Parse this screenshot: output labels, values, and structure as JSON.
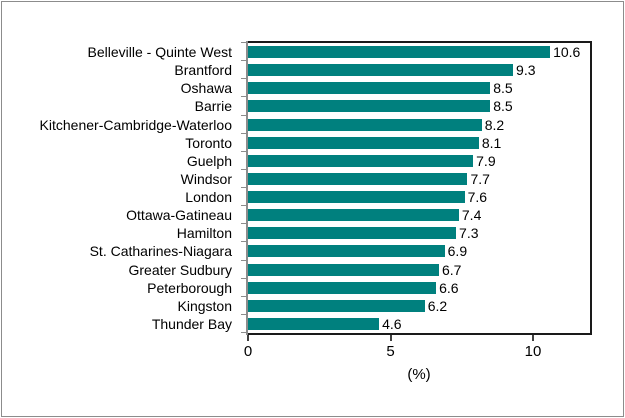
{
  "chart_data": {
    "type": "bar",
    "orientation": "horizontal",
    "title": "",
    "categories": [
      "Belleville - Quinte West",
      "Brantford",
      "Oshawa",
      "Barrie",
      "Kitchener-Cambridge-Waterloo",
      "Toronto",
      "Guelph",
      "Windsor",
      "London",
      "Ottawa-Gatineau",
      "Hamilton",
      "St. Catharines-Niagara",
      "Greater Sudbury",
      "Peterborough",
      "Kingston",
      "Thunder Bay"
    ],
    "values": [
      10.6,
      9.3,
      8.5,
      8.5,
      8.2,
      8.1,
      7.9,
      7.7,
      7.6,
      7.4,
      7.3,
      6.9,
      6.7,
      6.6,
      6.2,
      4.6
    ],
    "value_labels": [
      "10.6",
      "9.3",
      "8.5",
      "8.5",
      "8.2",
      "8.1",
      "7.9",
      "7.7",
      "7.6",
      "7.4",
      "7.3",
      "6.9",
      "6.7",
      "6.6",
      "6.2",
      "4.6"
    ],
    "xlabel": "(%)",
    "ylabel": "",
    "xlim": [
      0,
      12
    ],
    "xticks": [
      0,
      5,
      10
    ],
    "xtick_labels": [
      "0",
      "5",
      "10"
    ],
    "grid": false,
    "legend": null,
    "data_labels": true
  },
  "colors": {
    "bar": "#00807e",
    "plot_frame": "#1a1a1a",
    "axis_gray": "#8c8c8c",
    "tick": "#404040",
    "text": "#000000",
    "outer_border": "#8c8c8c",
    "background": "#ffffff"
  }
}
